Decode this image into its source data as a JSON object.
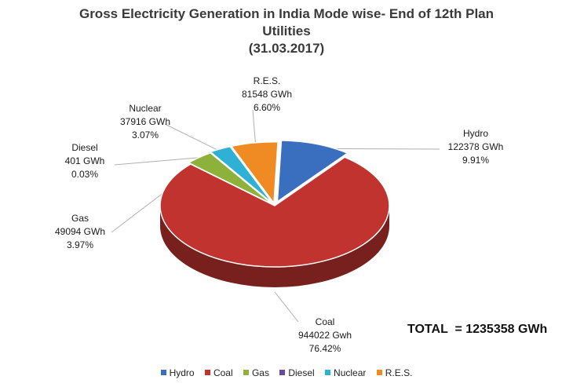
{
  "chart_data": {
    "type": "pie",
    "title_lines": [
      "Gross Electricity Generation in India Mode wise- End of 12th Plan",
      "Utilities",
      "(31.03.2017)"
    ],
    "slices": [
      {
        "name": "Hydro",
        "value_text": "122378 GWh",
        "percent_text": "9.91%",
        "value": 122378,
        "percent": 9.91,
        "color": "#3a6fc0"
      },
      {
        "name": "Coal",
        "value_text": "944022 Gwh",
        "percent_text": "76.42%",
        "value": 944022,
        "percent": 76.42,
        "color": "#c0332e"
      },
      {
        "name": "Gas",
        "value_text": "49094 GWh",
        "percent_text": "3.97%",
        "value": 49094,
        "percent": 3.97,
        "color": "#8db13b"
      },
      {
        "name": "Diesel",
        "value_text": "401 GWh",
        "percent_text": "0.03%",
        "value": 401,
        "percent": 0.03,
        "color": "#6b4a9c"
      },
      {
        "name": "Nuclear",
        "value_text": "37916 GWh",
        "percent_text": "3.07%",
        "value": 37916,
        "percent": 3.07,
        "color": "#2fb1d6"
      },
      {
        "name": "R.E.S.",
        "value_text": "81548 GWh",
        "percent_text": "6.60%",
        "value": 81548,
        "percent": 6.6,
        "color": "#f08a22"
      }
    ],
    "total_text": "TOTAL  = 1235358 GWh",
    "legend_position": "bottom"
  }
}
